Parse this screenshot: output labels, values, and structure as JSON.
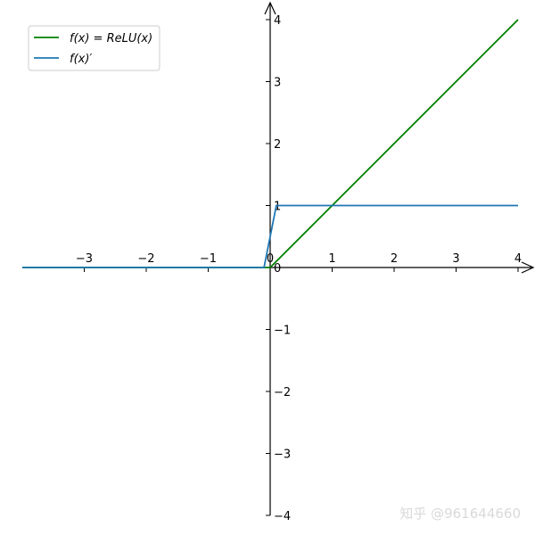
{
  "chart_data": {
    "type": "line",
    "title": "",
    "xlabel": "",
    "ylabel": "",
    "xlim": [
      -4,
      4
    ],
    "ylim": [
      -4,
      4
    ],
    "grid": false,
    "legend_position": "top-left",
    "x_ticks": [
      -3,
      -2,
      -1,
      0,
      1,
      2,
      3,
      4
    ],
    "x_tick_labels": [
      "−3",
      "−2",
      "−1",
      "0",
      "1",
      "2",
      "3",
      "4"
    ],
    "y_ticks": [
      -4,
      -3,
      -2,
      -1,
      0,
      1,
      2,
      3,
      4
    ],
    "y_tick_labels": [
      "−4",
      "−3",
      "−2",
      "−1",
      "0",
      "1",
      "2",
      "3",
      "4"
    ],
    "series": [
      {
        "name": "f(x) = ReLU(x)",
        "color": "#008000",
        "x": [
          -4,
          0,
          4
        ],
        "y": [
          0,
          0,
          4
        ]
      },
      {
        "name": "f(x)′",
        "color": "#1f77b4",
        "x": [
          -4,
          -0.1,
          0.1,
          4
        ],
        "y": [
          0,
          0,
          1,
          1
        ]
      }
    ]
  },
  "watermark": "知乎 @961644660"
}
